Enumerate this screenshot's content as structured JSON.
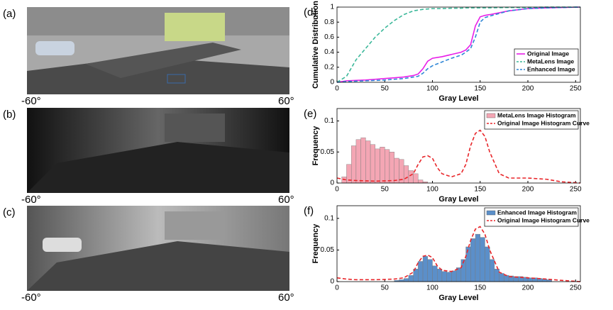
{
  "panels": [
    {
      "label": "(a)",
      "left": "-60°",
      "right": "60°"
    },
    {
      "label": "(b)",
      "left": "-60°",
      "right": "60°"
    },
    {
      "label": "(c)",
      "left": "-60°",
      "right": "60°"
    }
  ],
  "chart_data": [
    {
      "type": "line",
      "label": "(d)",
      "xlabel": "Gray Level",
      "ylabel": "Cumulative Distribution",
      "xlim": [
        0,
        255
      ],
      "ylim": [
        0,
        1
      ],
      "xticks": [
        0,
        50,
        100,
        150,
        200,
        250
      ],
      "yticks": [
        0,
        0.2,
        0.4,
        0.6,
        0.8,
        1
      ],
      "legend": "lower right",
      "x": [
        0,
        10,
        20,
        30,
        40,
        50,
        60,
        70,
        80,
        85,
        90,
        95,
        100,
        110,
        120,
        130,
        135,
        140,
        145,
        150,
        155,
        160,
        180,
        200,
        220,
        255
      ],
      "series": [
        {
          "name": "Original Image",
          "color": "#e81ee8",
          "style": "solid",
          "values": [
            0,
            0.02,
            0.025,
            0.03,
            0.04,
            0.05,
            0.06,
            0.07,
            0.09,
            0.11,
            0.18,
            0.28,
            0.32,
            0.34,
            0.37,
            0.4,
            0.43,
            0.5,
            0.75,
            0.87,
            0.89,
            0.9,
            0.95,
            0.98,
            0.99,
            1
          ]
        },
        {
          "name": "MetaLens Image",
          "color": "#3cb89a",
          "style": "dashed",
          "values": [
            0,
            0.08,
            0.3,
            0.45,
            0.6,
            0.72,
            0.82,
            0.9,
            0.95,
            0.96,
            0.97,
            0.975,
            0.98,
            0.98,
            0.985,
            0.985,
            0.99,
            0.99,
            0.99,
            0.99,
            0.99,
            0.99,
            0.995,
            0.995,
            1,
            1
          ]
        },
        {
          "name": "Enhanced Image",
          "color": "#2e86d6",
          "style": "dashed",
          "values": [
            0,
            0.01,
            0.015,
            0.02,
            0.025,
            0.03,
            0.04,
            0.05,
            0.07,
            0.08,
            0.12,
            0.18,
            0.22,
            0.27,
            0.32,
            0.36,
            0.4,
            0.45,
            0.6,
            0.8,
            0.86,
            0.88,
            0.95,
            0.98,
            0.99,
            1
          ]
        }
      ]
    },
    {
      "type": "histogram",
      "label": "(e)",
      "xlabel": "Gray Level",
      "ylabel": "Frequency",
      "xlim": [
        0,
        255
      ],
      "ylim": [
        0,
        0.12
      ],
      "xticks": [
        0,
        50,
        100,
        150,
        200,
        250
      ],
      "yticks": [
        0,
        0.05,
        0.1
      ],
      "legend": "upper right",
      "bins": [
        5,
        10,
        15,
        20,
        25,
        30,
        35,
        40,
        45,
        50,
        55,
        60,
        65,
        70,
        75,
        80,
        85,
        90,
        95
      ],
      "series": [
        {
          "name": "MetaLens Image Histogram",
          "color": "#f4a6b4",
          "values": [
            0.01,
            0.03,
            0.06,
            0.07,
            0.073,
            0.068,
            0.062,
            0.055,
            0.058,
            0.054,
            0.05,
            0.04,
            0.038,
            0.028,
            0.02,
            0.015,
            0.005,
            0.002
          ]
        }
      ],
      "curve": {
        "name": "Original Image Histogram Curve",
        "color": "#e8262a",
        "x": [
          0,
          10,
          20,
          40,
          60,
          70,
          80,
          85,
          90,
          95,
          100,
          105,
          110,
          120,
          130,
          135,
          140,
          145,
          150,
          155,
          160,
          170,
          180,
          200,
          220,
          235,
          255
        ],
        "values": [
          0.008,
          0.005,
          0.004,
          0.003,
          0.004,
          0.006,
          0.015,
          0.03,
          0.042,
          0.044,
          0.04,
          0.025,
          0.015,
          0.01,
          0.015,
          0.03,
          0.06,
          0.08,
          0.085,
          0.075,
          0.05,
          0.015,
          0.008,
          0.008,
          0.006,
          0.002,
          0
        ]
      }
    },
    {
      "type": "histogram",
      "label": "(f)",
      "xlabel": "Gray Level",
      "ylabel": "Frequency",
      "xlim": [
        0,
        255
      ],
      "ylim": [
        0,
        0.12
      ],
      "xticks": [
        0,
        50,
        100,
        150,
        200,
        250
      ],
      "yticks": [
        0,
        0.05,
        0.1
      ],
      "legend": "upper right",
      "bins": [
        60,
        65,
        70,
        75,
        80,
        85,
        90,
        95,
        100,
        105,
        110,
        115,
        120,
        125,
        130,
        135,
        140,
        145,
        150,
        155,
        160,
        165,
        170,
        175,
        180,
        185,
        190,
        195,
        200,
        205,
        210,
        215,
        220,
        225
      ],
      "series": [
        {
          "name": "Enhanced Image Histogram",
          "color": "#5b8fc9",
          "values": [
            0.002,
            0.003,
            0.005,
            0.01,
            0.02,
            0.032,
            0.04,
            0.035,
            0.025,
            0.02,
            0.016,
            0.015,
            0.017,
            0.022,
            0.035,
            0.055,
            0.068,
            0.075,
            0.07,
            0.055,
            0.035,
            0.02,
            0.013,
            0.01,
            0.009,
            0.008,
            0.008,
            0.007,
            0.006,
            0.006,
            0.005,
            0.004,
            0.003
          ]
        }
      ],
      "curve": {
        "name": "Original Image Histogram Curve",
        "color": "#e8262a",
        "x": [
          0,
          10,
          20,
          40,
          60,
          70,
          80,
          85,
          90,
          95,
          100,
          105,
          110,
          120,
          130,
          135,
          140,
          145,
          150,
          155,
          160,
          170,
          180,
          200,
          220,
          235,
          255
        ],
        "values": [
          0.006,
          0.004,
          0.003,
          0.003,
          0.004,
          0.006,
          0.015,
          0.03,
          0.04,
          0.042,
          0.038,
          0.025,
          0.018,
          0.016,
          0.022,
          0.04,
          0.065,
          0.083,
          0.087,
          0.075,
          0.05,
          0.015,
          0.008,
          0.006,
          0.004,
          0.002,
          0
        ]
      }
    }
  ]
}
